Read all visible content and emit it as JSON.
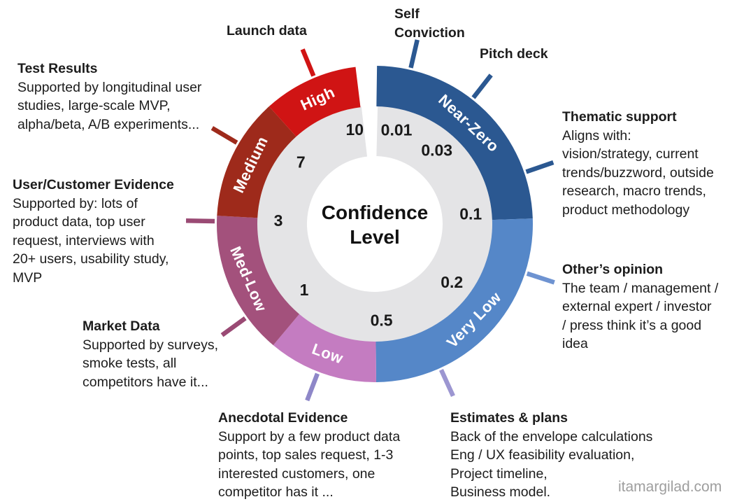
{
  "page": {
    "background": "#FFFFFF",
    "watermark": "itamargilad.com",
    "watermark_color": "#9E9E9E"
  },
  "chart_data": {
    "type": "pie",
    "variant": "donut-gauge",
    "title": "Confidence Level",
    "title_lines": [
      "Confidence",
      "Level"
    ],
    "legend_position": "none",
    "grid": false,
    "gap_wedge_deg": [
      353.0,
      0.8
    ],
    "segments": [
      {
        "label": "Near-Zero",
        "start_deg": 0.8,
        "end_deg": 88,
        "color": "#2B5891",
        "label_angle_deg": 43,
        "text_color": "#FFFFFF"
      },
      {
        "label": "Very Low",
        "start_deg": 88,
        "end_deg": 179.5,
        "color": "#5587C8",
        "label_angle_deg": 134,
        "text_color": "#FFFFFF"
      },
      {
        "label": "Low",
        "start_deg": 179.5,
        "end_deg": 220,
        "color": "#C47CC1",
        "label_angle_deg": 200,
        "text_color": "#FFFFFF"
      },
      {
        "label": "Med-Low",
        "start_deg": 220,
        "end_deg": 273,
        "color": "#A3517C",
        "label_angle_deg": 246.5,
        "text_color": "#FFFFFF"
      },
      {
        "label": "Medium",
        "start_deg": 273,
        "end_deg": 318,
        "color": "#9E2A1B",
        "label_angle_deg": 295.5,
        "text_color": "#FFFFFF"
      },
      {
        "label": "High",
        "start_deg": 318,
        "end_deg": 353,
        "color": "#D01414",
        "label_angle_deg": 335.5,
        "text_color": "#FFFFFF"
      }
    ],
    "scale": {
      "ring_color": "#E4E4E6",
      "text_color": "#1A1A1A",
      "values": [
        {
          "value": "0.01",
          "angle_deg": 13
        },
        {
          "value": "0.03",
          "angle_deg": 40
        },
        {
          "value": "0.1",
          "angle_deg": 84
        },
        {
          "value": "0.2",
          "angle_deg": 127
        },
        {
          "value": "0.5",
          "angle_deg": 176
        },
        {
          "value": "1",
          "angle_deg": 227
        },
        {
          "value": "3",
          "angle_deg": 272
        },
        {
          "value": "7",
          "angle_deg": 310
        },
        {
          "value": "10",
          "angle_deg": 348
        }
      ]
    },
    "callout_ticks": [
      {
        "name": "self-conviction",
        "angle_deg": 13,
        "color": "#2B5891"
      },
      {
        "name": "pitch-deck",
        "angle_deg": 38,
        "color": "#2B5891"
      },
      {
        "name": "thematic-support",
        "angle_deg": 71,
        "color": "#2B5891"
      },
      {
        "name": "others-opinion",
        "angle_deg": 108,
        "color": "#6E93D1"
      },
      {
        "name": "estimates-plans",
        "angle_deg": 155.5,
        "color": "#9C96D1"
      },
      {
        "name": "anecdotal-evidence",
        "angle_deg": 201,
        "color": "#8E87C8"
      },
      {
        "name": "market-data",
        "angle_deg": 234,
        "color": "#9A4A74"
      },
      {
        "name": "user-customer-evidence",
        "angle_deg": 271,
        "color": "#9A4A74"
      },
      {
        "name": "test-results",
        "angle_deg": 300.5,
        "color": "#9E2A1B"
      },
      {
        "name": "launch-data",
        "angle_deg": 337.5,
        "color": "#D01414"
      }
    ]
  },
  "annotations": {
    "launch_data": {
      "heading": "Launch data",
      "body": ""
    },
    "self_conviction": {
      "heading": "Self\nConviction",
      "body": ""
    },
    "pitch_deck": {
      "heading": "Pitch deck",
      "body": ""
    },
    "test_results": {
      "heading": "Test Results",
      "body": "Supported by longitudinal user\nstudies, large-scale MVP,\nalpha/beta, A/B experiments..."
    },
    "user_customer_evidence": {
      "heading": "User/Customer Evidence",
      "body": "Supported by: lots of\nproduct data, top user\nrequest, interviews with\n20+ users, usability study,\nMVP"
    },
    "market_data": {
      "heading": "Market Data",
      "body": "Supported by surveys,\nsmoke tests, all\ncompetitors have it..."
    },
    "anecdotal_evidence": {
      "heading": "Anecdotal Evidence",
      "body": "Support by a few product data\npoints, top sales request, 1-3\ninterested customers, one\ncompetitor has it ..."
    },
    "estimates_plans": {
      "heading": "Estimates & plans",
      "body": "Back of the envelope calculations\nEng / UX feasibility evaluation,\nProject timeline,\nBusiness model."
    },
    "thematic_support": {
      "heading": "Thematic support",
      "body": "Aligns with:\nvision/strategy, current\ntrends/buzzword, outside\nresearch, macro trends,\nproduct methodology"
    },
    "others_opinion": {
      "heading": "Other’s opinion",
      "body": "The team / management /\nexternal expert /  investor\n/ press think it’s a good\nidea"
    }
  }
}
